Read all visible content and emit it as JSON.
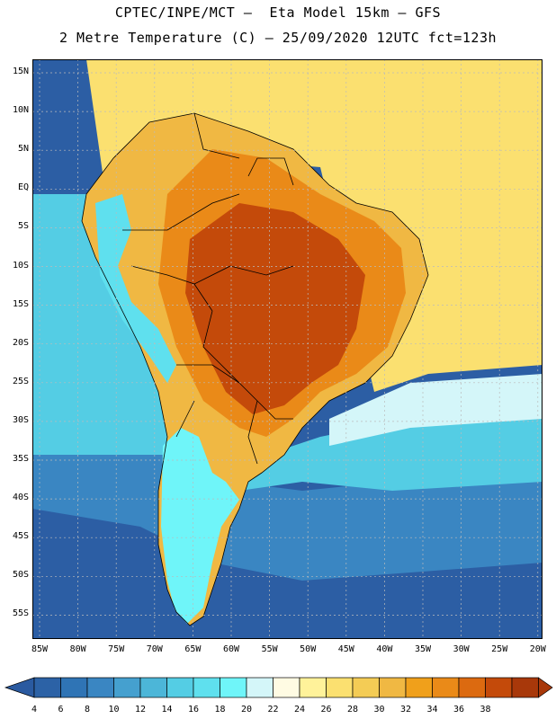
{
  "header": {
    "line1": "CPTEC/INPE/MCT –  Eta Model 15km – GFS",
    "line2": "2 Metre Temperature (C) – 25/09/2020 12UTC fct=123h"
  },
  "map": {
    "lat_labels": [
      "15N",
      "10N",
      "5N",
      "EQ",
      "5S",
      "10S",
      "15S",
      "20S",
      "25S",
      "30S",
      "35S",
      "40S",
      "45S",
      "50S",
      "55S"
    ],
    "lon_labels": [
      "85W",
      "80W",
      "75W",
      "70W",
      "65W",
      "60W",
      "55W",
      "50W",
      "45W",
      "40W",
      "35W",
      "30W",
      "25W",
      "20W"
    ]
  },
  "colorbar": {
    "labels": [
      "4",
      "6",
      "8",
      "10",
      "12",
      "14",
      "16",
      "18",
      "20",
      "22",
      "24",
      "26",
      "28",
      "30",
      "32",
      "34",
      "36",
      "38"
    ],
    "colors": [
      "#2c62a6",
      "#2f74b5",
      "#3a86c2",
      "#45a0cf",
      "#4cb6d8",
      "#54cde4",
      "#5fe0ee",
      "#6ff5f9",
      "#d4f6f9",
      "#fffbe3",
      "#fff29a",
      "#fbe070",
      "#f4cc55",
      "#f0b843",
      "#f0a01b",
      "#ea8a18",
      "#dc6a10",
      "#c44a0a",
      "#a8380a"
    ],
    "under_color": "#2a5aa0",
    "over_color": "#a8380a"
  },
  "palette": {
    "ocean_deep": "#2c5ea4",
    "ocean_mid": "#3a86c2",
    "ocean_cyan": "#54cde4",
    "warm_sea": "#fbe070",
    "land_hot": "#c44a0a",
    "land_warm": "#ea8a18",
    "land_mild": "#f0b843",
    "grid": "#bbbbbb"
  }
}
